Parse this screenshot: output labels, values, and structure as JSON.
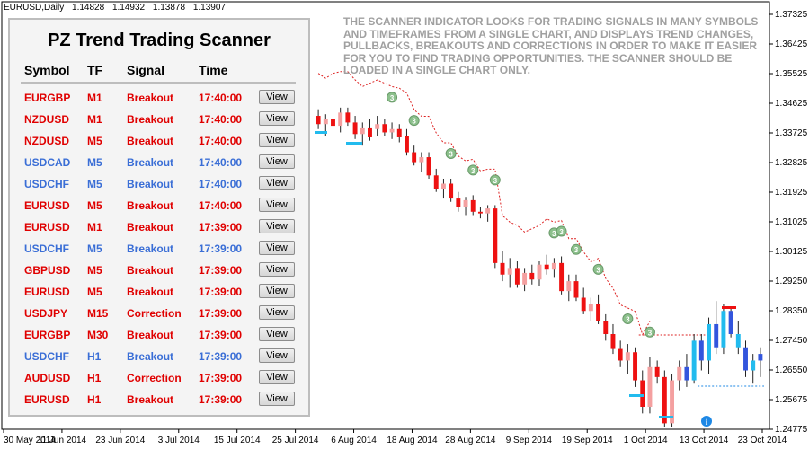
{
  "header": {
    "symbol": "EURUSD,Daily",
    "ohlc": [
      "1.14828",
      "1.14932",
      "1.13878",
      "1.13907"
    ]
  },
  "notice": "THE SCANNER INDICATOR LOOKS FOR TRADING SIGNALS IN MANY SYMBOLS AND TIMEFRAMES FROM A SINGLE CHART, AND DISPLAYS TREND CHANGES, PULLBACKS, BREAKOUTS AND CORRECTIONS IN ORDER TO MAKE IT EASIER FOR YOU TO FIND TRADING OPPORTUNITIES. THE SCANNER SHOULD BE LOADED IN A SINGLE CHART ONLY.",
  "scanner": {
    "title": "PZ Trend Trading Scanner",
    "columns": {
      "symbol": "Symbol",
      "tf": "TF",
      "signal": "Signal",
      "time": "Time"
    },
    "view_label": "View",
    "colors": {
      "red": "#e00000",
      "blue": "#3a6ed6"
    },
    "rows": [
      {
        "symbol": "EURGBP",
        "tf": "M1",
        "signal": "Breakout",
        "time": "17:40:00",
        "color": "red"
      },
      {
        "symbol": "NZDUSD",
        "tf": "M1",
        "signal": "Breakout",
        "time": "17:40:00",
        "color": "red"
      },
      {
        "symbol": "NZDUSD",
        "tf": "M5",
        "signal": "Breakout",
        "time": "17:40:00",
        "color": "red"
      },
      {
        "symbol": "USDCAD",
        "tf": "M5",
        "signal": "Breakout",
        "time": "17:40:00",
        "color": "blue"
      },
      {
        "symbol": "USDCHF",
        "tf": "M5",
        "signal": "Breakout",
        "time": "17:40:00",
        "color": "blue"
      },
      {
        "symbol": "EURUSD",
        "tf": "M5",
        "signal": "Breakout",
        "time": "17:40:00",
        "color": "red"
      },
      {
        "symbol": "EURUSD",
        "tf": "M1",
        "signal": "Breakout",
        "time": "17:39:00",
        "color": "red"
      },
      {
        "symbol": "USDCHF",
        "tf": "M5",
        "signal": "Breakout",
        "time": "17:39:00",
        "color": "blue"
      },
      {
        "symbol": "GBPUSD",
        "tf": "M5",
        "signal": "Breakout",
        "time": "17:39:00",
        "color": "red"
      },
      {
        "symbol": "EURUSD",
        "tf": "M5",
        "signal": "Breakout",
        "time": "17:39:00",
        "color": "red"
      },
      {
        "symbol": "USDJPY",
        "tf": "M15",
        "signal": "Correction",
        "time": "17:39:00",
        "color": "red"
      },
      {
        "symbol": "EURGBP",
        "tf": "M30",
        "signal": "Breakout",
        "time": "17:39:00",
        "color": "red"
      },
      {
        "symbol": "USDCHF",
        "tf": "H1",
        "signal": "Breakout",
        "time": "17:39:00",
        "color": "blue"
      },
      {
        "symbol": "AUDUSD",
        "tf": "H1",
        "signal": "Correction",
        "time": "17:39:00",
        "color": "red"
      },
      {
        "symbol": "EURUSD",
        "tf": "H1",
        "signal": "Breakout",
        "time": "17:39:00",
        "color": "red"
      }
    ]
  },
  "chart_data": {
    "type": "candlestick",
    "price_labels": [
      "1.37325",
      "1.36425",
      "1.35525",
      "1.34625",
      "1.33725",
      "1.32825",
      "1.31925",
      "1.31025",
      "1.30125",
      "1.29250",
      "1.28350",
      "1.27450",
      "1.26550",
      "1.25675",
      "1.24775"
    ],
    "ylim": [
      1.24775,
      1.37325
    ],
    "date_labels": [
      "30 May 2014",
      "11 Jun 2014",
      "23 Jun 2014",
      "3 Jul 2014",
      "15 Jul 2014",
      "25 Jul 2014",
      "6 Aug 2014",
      "18 Aug 2014",
      "28 Aug 2014",
      "9 Sep 2014",
      "19 Sep 2014",
      "1 Oct 2014",
      "13 Oct 2014",
      "23 Oct 2014"
    ],
    "current_price": "1.13907",
    "colors": {
      "bear": "#ee1111",
      "bull_bg": "#f4a0a0",
      "blue": "#3355dd",
      "cyan": "#22bbee",
      "marker": "#8cc08c",
      "dotted": "#dd2222",
      "info": "#1e88e5"
    },
    "candles": [
      [
        1.342,
        1.344,
        1.338,
        1.3395
      ],
      [
        1.3395,
        1.3425,
        1.336,
        1.341
      ],
      [
        1.341,
        1.344,
        1.338,
        1.339
      ],
      [
        1.339,
        1.3445,
        1.337,
        1.343
      ],
      [
        1.343,
        1.3445,
        1.339,
        1.34
      ],
      [
        1.34,
        1.342,
        1.335,
        1.3365
      ],
      [
        1.3365,
        1.34,
        1.333,
        1.3385
      ],
      [
        1.3385,
        1.341,
        1.3345,
        1.3355
      ],
      [
        1.338,
        1.342,
        1.336,
        1.3395
      ],
      [
        1.3395,
        1.341,
        1.336,
        1.337
      ],
      [
        1.337,
        1.34,
        1.335,
        1.338
      ],
      [
        1.338,
        1.3395,
        1.334,
        1.3355
      ],
      [
        1.336,
        1.338,
        1.33,
        1.331
      ],
      [
        1.331,
        1.333,
        1.327,
        1.328
      ],
      [
        1.328,
        1.331,
        1.325,
        1.3295
      ],
      [
        1.3295,
        1.331,
        1.323,
        1.324
      ],
      [
        1.324,
        1.326,
        1.319,
        1.32
      ],
      [
        1.32,
        1.323,
        1.317,
        1.3215
      ],
      [
        1.3215,
        1.323,
        1.316,
        1.317
      ],
      [
        1.317,
        1.319,
        1.313,
        1.3145
      ],
      [
        1.3145,
        1.3175,
        1.312,
        1.3165
      ],
      [
        1.3165,
        1.318,
        1.312,
        1.313
      ],
      [
        1.313,
        1.3145,
        1.311,
        1.3125
      ],
      [
        1.3125,
        1.315,
        1.31,
        1.314
      ],
      [
        1.314,
        1.315,
        1.296,
        1.2975
      ],
      [
        1.2975,
        1.301,
        1.292,
        1.294
      ],
      [
        1.294,
        1.299,
        1.29,
        1.296
      ],
      [
        1.296,
        1.298,
        1.29,
        1.291
      ],
      [
        1.291,
        1.296,
        1.289,
        1.2945
      ],
      [
        1.2945,
        1.297,
        1.291,
        1.2925
      ],
      [
        1.2925,
        1.298,
        1.2905,
        1.297
      ],
      [
        1.297,
        1.3,
        1.294,
        1.2955
      ],
      [
        1.2955,
        1.299,
        1.293,
        1.2975
      ],
      [
        1.2975,
        1.2995,
        1.288,
        1.289
      ],
      [
        1.289,
        1.294,
        1.286,
        1.292
      ],
      [
        1.292,
        1.294,
        1.286,
        1.287
      ],
      [
        1.287,
        1.29,
        1.282,
        1.283
      ],
      [
        1.283,
        1.287,
        1.28,
        1.285
      ],
      [
        1.285,
        1.288,
        1.279,
        1.28
      ],
      [
        1.28,
        1.282,
        1.274,
        1.276
      ],
      [
        1.276,
        1.279,
        1.27,
        1.2715
      ],
      [
        1.2715,
        1.274,
        1.266,
        1.268
      ],
      [
        1.268,
        1.273,
        1.264,
        1.2705
      ],
      [
        1.2705,
        1.272,
        1.26,
        1.262
      ],
      [
        1.262,
        1.265,
        1.252,
        1.254
      ],
      [
        1.254,
        1.269,
        1.252,
        1.266
      ],
      [
        1.266,
        1.268,
        1.261,
        1.263
      ],
      [
        1.263,
        1.265,
        1.248,
        1.249
      ],
      [
        1.249,
        1.264,
        1.248,
        1.262
      ],
      [
        1.262,
        1.268,
        1.259,
        1.266
      ],
      [
        1.266,
        1.27,
        1.26,
        1.262
      ],
      [
        1.262,
        1.276,
        1.261,
        1.274
      ],
      [
        1.274,
        1.276,
        1.265,
        1.268
      ],
      [
        1.268,
        1.281,
        1.264,
        1.279
      ],
      [
        1.279,
        1.286,
        1.27,
        1.272
      ],
      [
        1.272,
        1.285,
        1.27,
        1.283
      ],
      [
        1.283,
        1.284,
        1.275,
        1.276
      ],
      [
        1.276,
        1.28,
        1.27,
        1.272
      ],
      [
        1.272,
        1.274,
        1.263,
        1.265
      ],
      [
        1.265,
        1.27,
        1.261,
        1.268
      ],
      [
        1.268,
        1.272,
        1.263,
        1.27
      ]
    ]
  }
}
